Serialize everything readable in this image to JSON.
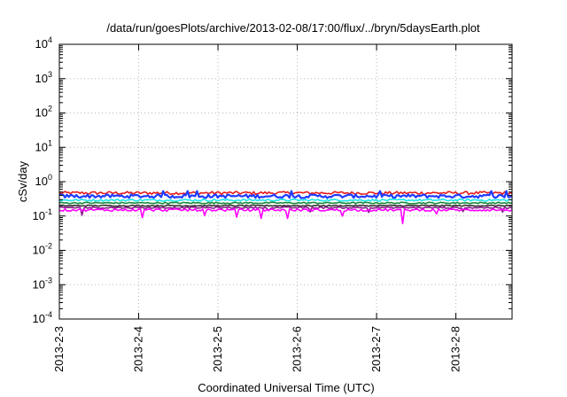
{
  "chart_data": {
    "type": "line",
    "title": "/data/run/goesPlots/archive/2013-02-08/17:00/flux/../bryn/5daysEarth.plot",
    "xlabel": "Coordinated Universal Time (UTC)",
    "ylabel": "cSv/day",
    "yscale": "log",
    "ylim": [
      0.0001,
      10000
    ],
    "y_ticks": [
      {
        "exp": "-4",
        "value": 0.0001
      },
      {
        "exp": "-3",
        "value": 0.001
      },
      {
        "exp": "-2",
        "value": 0.01
      },
      {
        "exp": "-1",
        "value": 0.1
      },
      {
        "exp": "0",
        "value": 1
      },
      {
        "exp": "1",
        "value": 10
      },
      {
        "exp": "2",
        "value": 100
      },
      {
        "exp": "3",
        "value": 1000
      },
      {
        "exp": "4",
        "value": 10000
      }
    ],
    "xlim": [
      "2013-02-03",
      "2013-02-08T17:00"
    ],
    "x_ticks": [
      "2013-2-3",
      "2013-2-4",
      "2013-2-5",
      "2013-2-6",
      "2013-2-7",
      "2013-2-8"
    ],
    "grid": true,
    "series": [
      {
        "color": "#e41a1c",
        "base": 0.47,
        "noise": 0.1
      },
      {
        "color": "#1f3cff",
        "base": 0.38,
        "noise": 0.12
      },
      {
        "color": "#19e6e6",
        "base": 0.29,
        "noise": 0.07
      },
      {
        "color": "#1a8a3a",
        "base": 0.24,
        "noise": 0.05
      },
      {
        "color": "#333333",
        "base": 0.2,
        "noise": 0.04
      },
      {
        "color": "#8b1a8b",
        "base": 0.175,
        "noise": 0.05
      },
      {
        "color": "#ff00ff",
        "base": 0.15,
        "noise": 0.08
      }
    ]
  }
}
